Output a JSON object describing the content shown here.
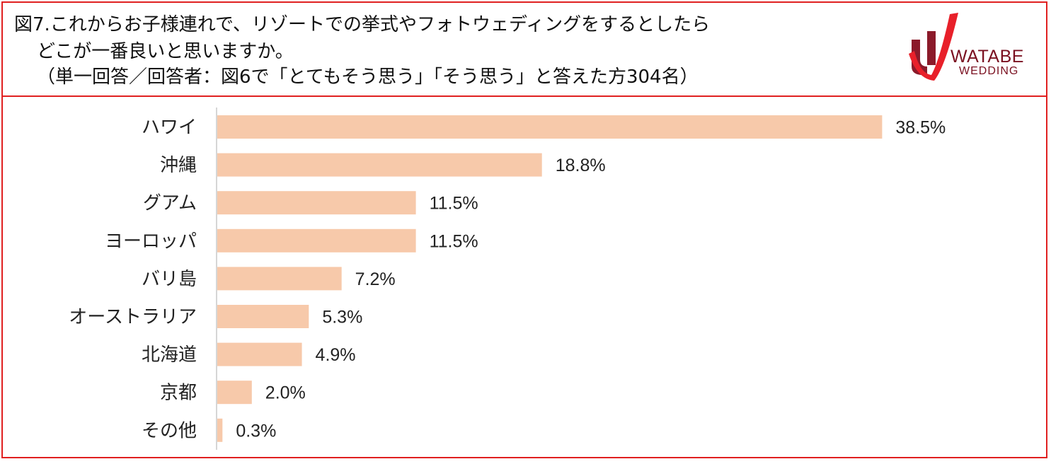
{
  "header": {
    "title_line1": "図7.これからお子様連れで、リゾートでの挙式やフォトウェディングをするとしたら",
    "title_line2": "どこが一番良いと思いますか。",
    "title_line3": "（単一回答／回答者：図6で「とてもそう思う」「そう思う」と答えた方304名）"
  },
  "logo": {
    "name": "logo-icon",
    "line1": "WATABE",
    "line2": "WEDDING",
    "color": "#8b1a2a"
  },
  "chart_data": {
    "type": "bar",
    "orientation": "horizontal",
    "categories": [
      "ハワイ",
      "沖縄",
      "グアム",
      "ヨーロッパ",
      "バリ島",
      "オーストラリア",
      "北海道",
      "京都",
      "その他"
    ],
    "values": [
      38.5,
      18.8,
      11.5,
      11.5,
      7.2,
      5.3,
      4.9,
      2.0,
      0.3
    ],
    "value_labels": [
      "38.5%",
      "18.8%",
      "11.5%",
      "11.5%",
      "7.2%",
      "5.3%",
      "4.9%",
      "2.0%",
      "0.3%"
    ],
    "xlim": [
      0,
      40
    ],
    "grid": false,
    "bar_color": "#f7c9aa"
  }
}
